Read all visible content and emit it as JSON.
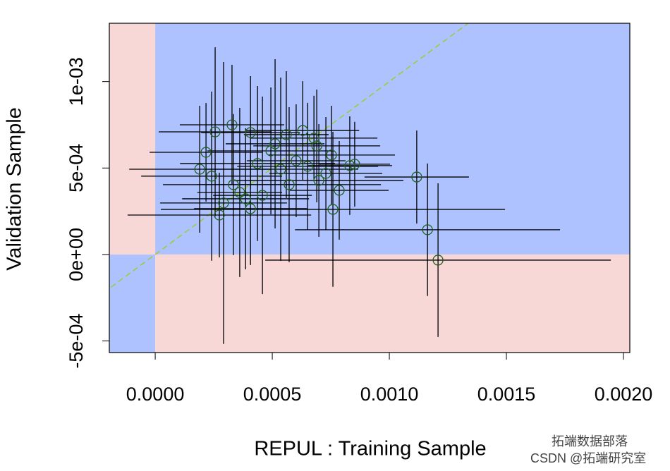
{
  "chart_data": {
    "type": "errorbar-scatter",
    "xlabel": "REPUL : Training Sample",
    "ylabel": "Validation Sample",
    "xlim": [
      -0.000196,
      0.002027
    ],
    "ylim": [
      -0.000567,
      0.001337
    ],
    "xticks": [
      {
        "value": 0,
        "label": "0.0000"
      },
      {
        "value": 0.0005,
        "label": "0.0005"
      },
      {
        "value": 0.001,
        "label": "0.0010"
      },
      {
        "value": 0.0015,
        "label": "0.0015"
      },
      {
        "value": 0.002,
        "label": "0.0020"
      }
    ],
    "yticks": [
      {
        "value": -0.0005,
        "label": "-5e-04"
      },
      {
        "value": 0,
        "label": "0e+00"
      },
      {
        "value": 0.0005,
        "label": "5e-04"
      },
      {
        "value": 0.001,
        "label": "1e-03"
      }
    ],
    "sign_agree_color": "#adc2ff",
    "sign_disagree_color": "#f8d7d7",
    "diagonal": true,
    "diagonal_color": "#9acd32",
    "series": [
      {
        "color": "#1f5f1f",
        "x": [
          0.001208,
          0.001163,
          0.001117,
          0.000759,
          0.000328,
          0.000256,
          0.000217,
          0.00019,
          0.000274,
          0.000292,
          0.000407,
          0.000458,
          0.00063,
          0.00069,
          0.000786,
          0.000852,
          0.000699,
          0.00056,
          0.000407,
          0.000334,
          0.000361,
          0.000386,
          0.000494,
          0.000536,
          0.000602,
          0.000651,
          0.000729,
          0.000831,
          0.000241,
          0.000437,
          0.000572,
          0.000512,
          0.000753,
          0.000678
        ],
        "y": [
          -3.26e-05,
          0.000143,
          0.000448,
          0.000261,
          0.00075,
          0.000709,
          0.000591,
          0.000493,
          0.000228,
          0.000298,
          0.000265,
          0.000342,
          0.000717,
          0.000628,
          0.000371,
          0.000522,
          0.000428,
          0.000693,
          0.000705,
          0.000404,
          0.000359,
          0.000322,
          0.000599,
          0.000493,
          0.000542,
          0.00051,
          0.000469,
          0.000514,
          0.000453,
          0.000526,
          0.000404,
          0.00064,
          0.000575,
          0.000673
        ],
        "xerr": [
          0.000738,
          0.000566,
          0.000223,
          0.000735,
          0.000223,
          0.000241,
          0.000241,
          0.000301,
          0.000392,
          0.000271,
          0.000241,
          0.000211,
          0.000241,
          0.000271,
          0.000211,
          0.000151,
          0.000361,
          0.000181,
          0.000211,
          0.000301,
          0.000181,
          0.000271,
          0.000271,
          0.000331,
          0.000211,
          0.000301,
          0.000241,
          0.000181,
          0.000301,
          0.000331,
          0.000392,
          0.000211,
          0.000271,
          0.000271
        ],
        "yerr": [
          0.000444,
          0.000383,
          0.000269,
          0.000448,
          0.000347,
          0.000489,
          0.000285,
          0.000367,
          0.000245,
          0.000815,
          0.000326,
          0.000571,
          0.000285,
          0.000326,
          0.000285,
          0.000245,
          0.000326,
          0.000367,
          0.000326,
          0.000408,
          0.000489,
          0.000408,
          0.000367,
          0.00053,
          0.000326,
          0.000367,
          0.000326,
          0.000285,
          0.000489,
          0.000448,
          0.000448,
          0.000489,
          0.000285,
          0.000245
        ]
      }
    ],
    "watermark": [
      "拓端数据部落",
      "CSDN @拓端研究室"
    ]
  }
}
